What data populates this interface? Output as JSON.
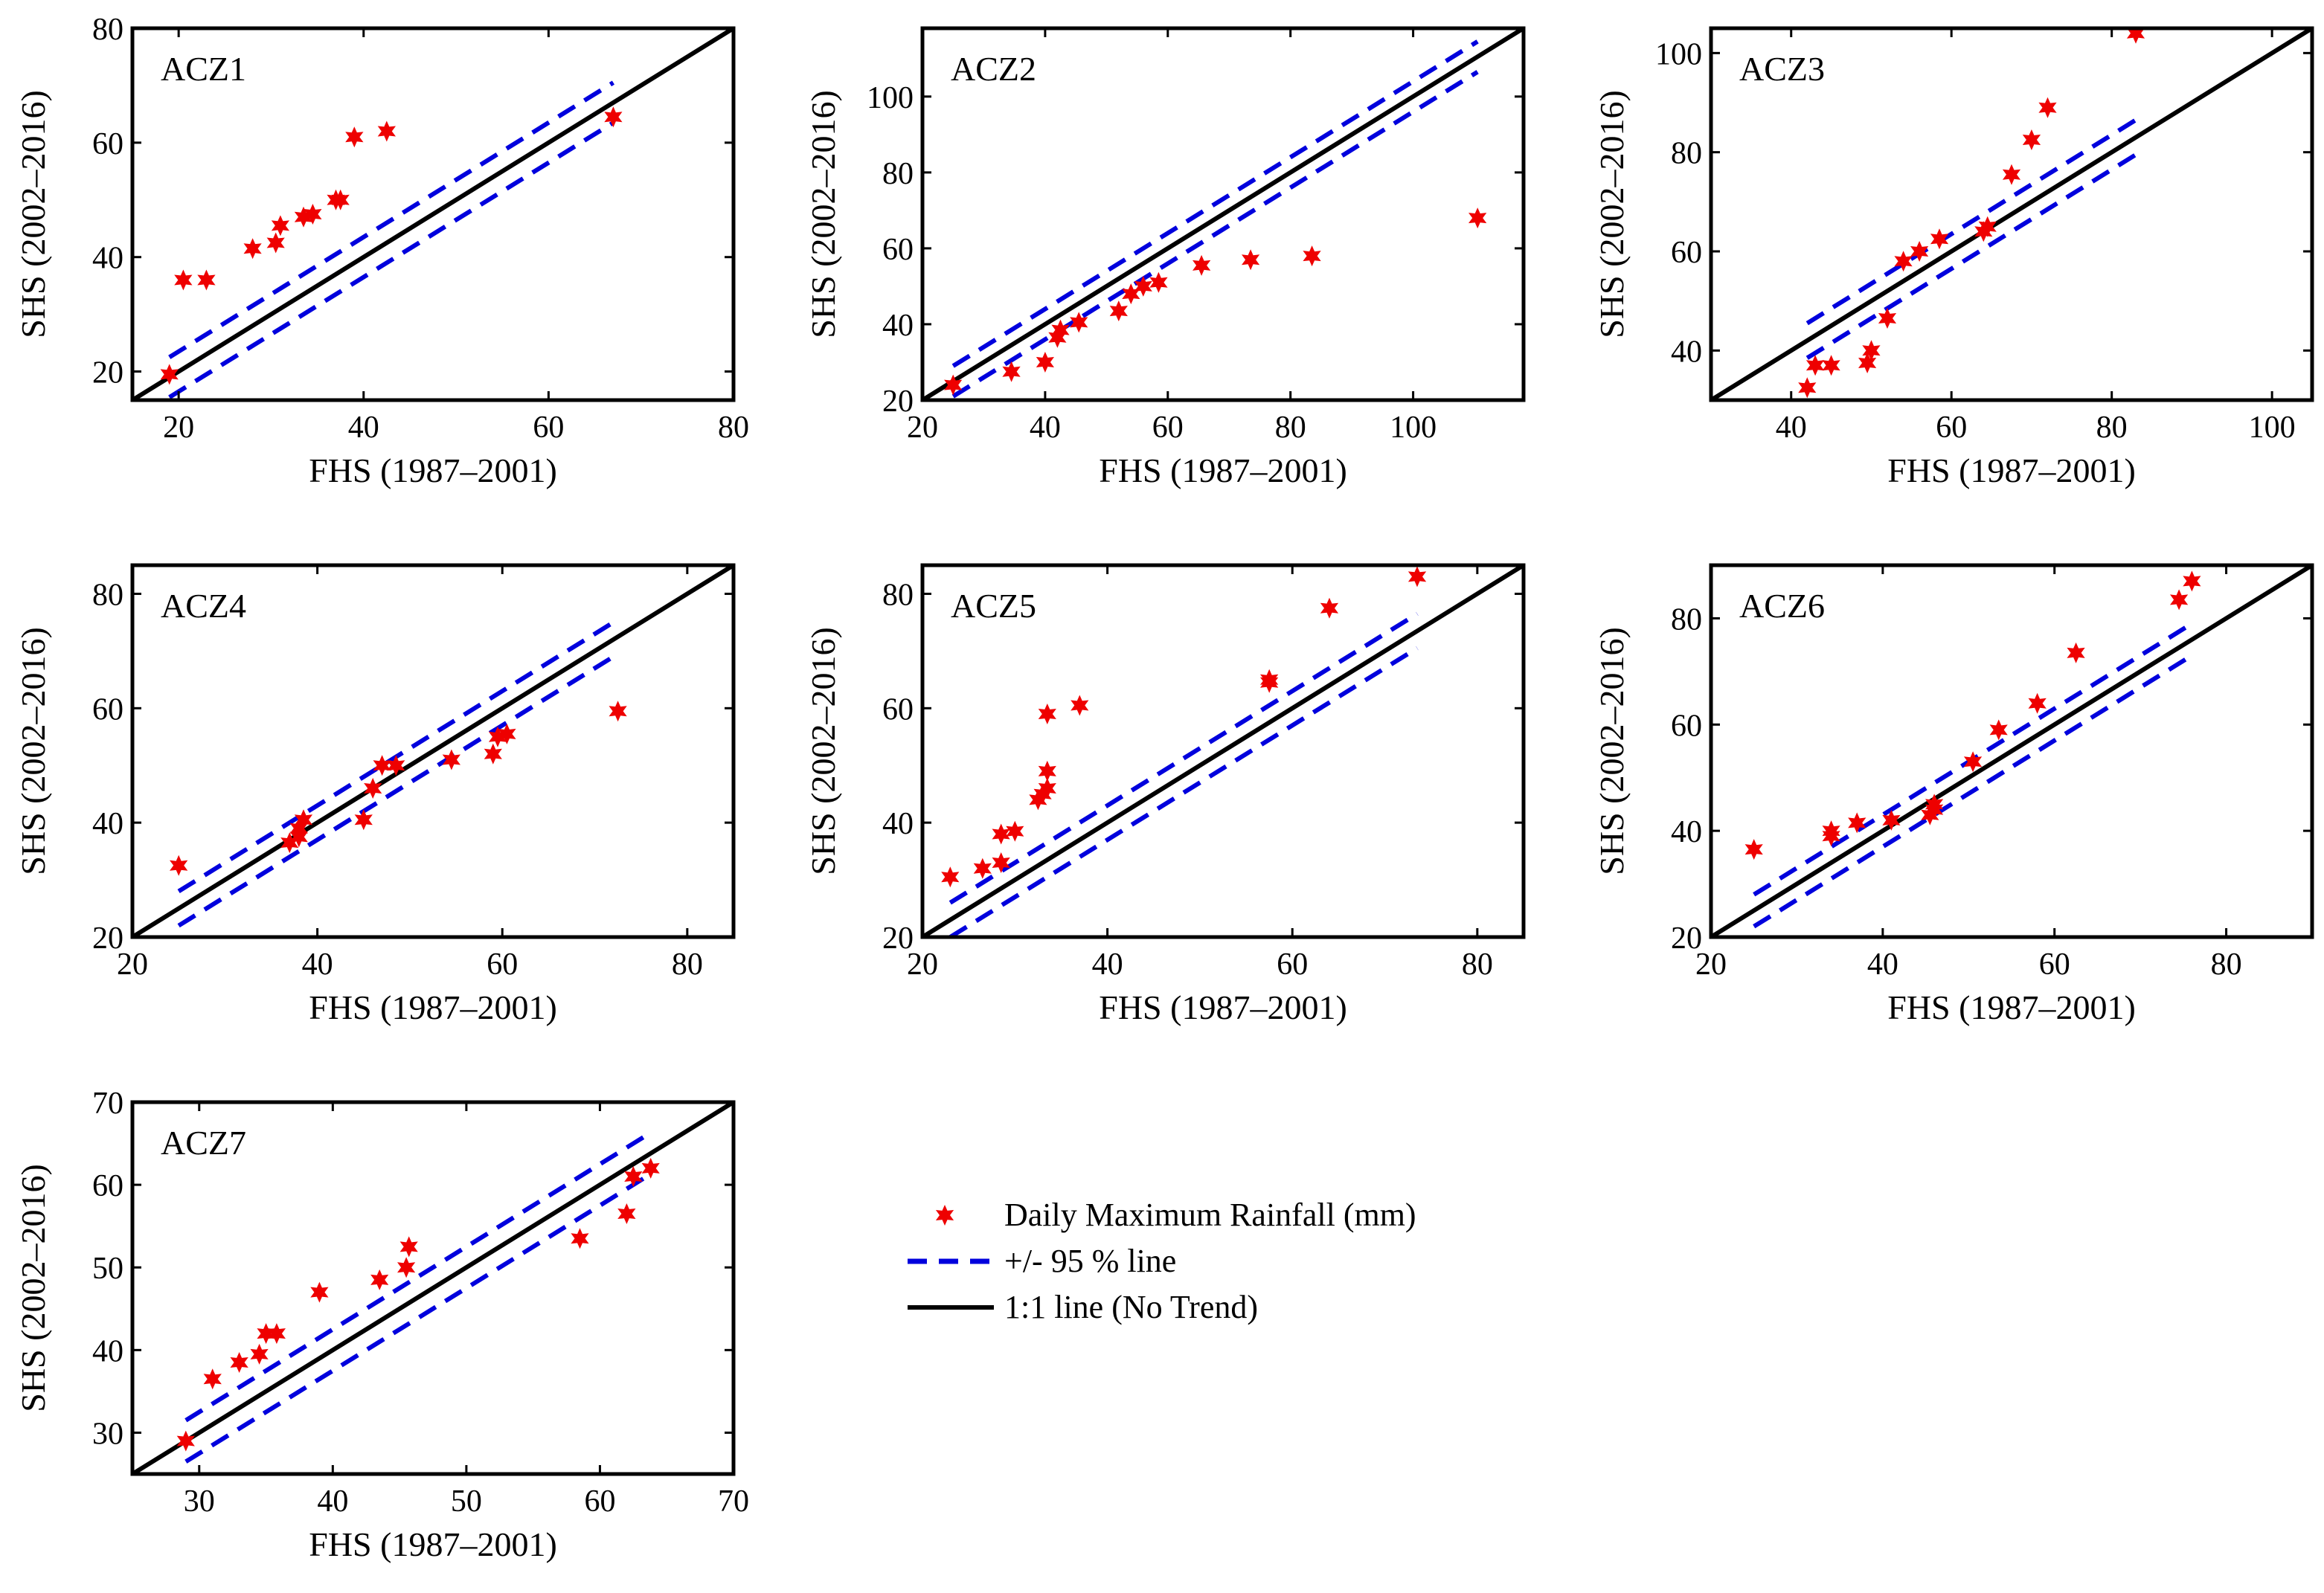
{
  "chart_data": [
    {
      "type": "scatter",
      "panel": "ACZ1",
      "xlabel": "FHS (1987–2001)",
      "ylabel": "SHS (2002–2016)",
      "xlim": [
        15,
        80
      ],
      "ylim": [
        15,
        80
      ],
      "xticks": [
        20,
        40,
        60,
        80
      ],
      "yticks": [
        20,
        40,
        60,
        80
      ],
      "band": 3.5,
      "points": [
        [
          19,
          19.5
        ],
        [
          20.5,
          36
        ],
        [
          23,
          36
        ],
        [
          28,
          41.5
        ],
        [
          30.5,
          42.5
        ],
        [
          31,
          45.5
        ],
        [
          33.5,
          47
        ],
        [
          34.5,
          47.5
        ],
        [
          37,
          50
        ],
        [
          37.5,
          50
        ],
        [
          39,
          61
        ],
        [
          42.5,
          62
        ],
        [
          67,
          64.5
        ]
      ]
    },
    {
      "type": "scatter",
      "panel": "ACZ2",
      "xlabel": "FHS (1987–2001)",
      "ylabel": "SHS (2002–2016)",
      "xlim": [
        20,
        118
      ],
      "ylim": [
        20,
        118
      ],
      "xticks": [
        20,
        40,
        60,
        80,
        100
      ],
      "yticks": [
        20,
        40,
        60,
        80,
        100
      ],
      "band": 4,
      "points": [
        [
          25,
          24
        ],
        [
          34.5,
          27.5
        ],
        [
          40,
          30
        ],
        [
          42,
          36.5
        ],
        [
          42.5,
          38.5
        ],
        [
          45.5,
          40.5
        ],
        [
          52,
          43.5
        ],
        [
          54,
          48
        ],
        [
          56,
          50
        ],
        [
          58.5,
          51
        ],
        [
          65.5,
          55.5
        ],
        [
          73.5,
          57
        ],
        [
          83.5,
          58
        ],
        [
          110.5,
          68
        ]
      ]
    },
    {
      "type": "scatter",
      "panel": "ACZ3",
      "xlabel": "FHS (1987–2001)",
      "ylabel": "SHS (2002–2016)",
      "xlim": [
        30,
        105
      ],
      "ylim": [
        30,
        105
      ],
      "xticks": [
        40,
        60,
        80,
        100
      ],
      "yticks": [
        40,
        60,
        80,
        100
      ],
      "band": 3.5,
      "points": [
        [
          42,
          32.5
        ],
        [
          43,
          37
        ],
        [
          45,
          37
        ],
        [
          49.5,
          37.5
        ],
        [
          50,
          40
        ],
        [
          52,
          46.5
        ],
        [
          54,
          58
        ],
        [
          56,
          60
        ],
        [
          58.5,
          62.5
        ],
        [
          64,
          64
        ],
        [
          64.5,
          65
        ],
        [
          67.5,
          75.5
        ],
        [
          70,
          82.5
        ],
        [
          72,
          89
        ],
        [
          83,
          104
        ]
      ]
    },
    {
      "type": "scatter",
      "panel": "ACZ4",
      "xlabel": "FHS (1987–2001)",
      "ylabel": "SHS (2002–2016)",
      "xlim": [
        20,
        85
      ],
      "ylim": [
        20,
        85
      ],
      "xticks": [
        20,
        40,
        60,
        80
      ],
      "yticks": [
        20,
        40,
        60,
        80
      ],
      "band": 3,
      "points": [
        [
          25,
          32.5
        ],
        [
          37,
          36.5
        ],
        [
          38,
          37.5
        ],
        [
          38,
          39
        ],
        [
          38.5,
          40.5
        ],
        [
          45,
          40.5
        ],
        [
          46,
          46
        ],
        [
          47,
          50
        ],
        [
          48.5,
          50
        ],
        [
          54.5,
          51
        ],
        [
          59,
          52
        ],
        [
          59.5,
          55
        ],
        [
          60.5,
          55.5
        ],
        [
          72.5,
          59.5
        ]
      ]
    },
    {
      "type": "scatter",
      "panel": "ACZ5",
      "xlabel": "FHS (1987–2001)",
      "ylabel": "SHS (2002–2016)",
      "xlim": [
        20,
        85
      ],
      "ylim": [
        20,
        85
      ],
      "xticks": [
        20,
        40,
        60,
        80
      ],
      "yticks": [
        20,
        40,
        60,
        80
      ],
      "band": 3,
      "points": [
        [
          23,
          30.5
        ],
        [
          26.5,
          32
        ],
        [
          28.5,
          33
        ],
        [
          28.5,
          38
        ],
        [
          30,
          38.5
        ],
        [
          32.5,
          44
        ],
        [
          33,
          45
        ],
        [
          33.5,
          46
        ],
        [
          33.5,
          49
        ],
        [
          33.5,
          59
        ],
        [
          37,
          60.5
        ],
        [
          57.5,
          64.5
        ],
        [
          57.5,
          65
        ],
        [
          64,
          77.5
        ],
        [
          73.5,
          83
        ]
      ]
    },
    {
      "type": "scatter",
      "panel": "ACZ6",
      "xlabel": "FHS (1987–2001)",
      "ylabel": "SHS (2002–2016)",
      "xlim": [
        20,
        90
      ],
      "ylim": [
        20,
        90
      ],
      "xticks": [
        20,
        40,
        60,
        80
      ],
      "yticks": [
        20,
        40,
        60,
        80
      ],
      "band": 3,
      "points": [
        [
          25,
          36.5
        ],
        [
          34,
          39
        ],
        [
          34,
          40
        ],
        [
          37,
          41.5
        ],
        [
          41,
          42
        ],
        [
          45.5,
          43
        ],
        [
          46,
          44
        ],
        [
          46,
          45
        ],
        [
          50.5,
          53
        ],
        [
          53.5,
          59
        ],
        [
          58,
          64
        ],
        [
          62.5,
          73.5
        ],
        [
          74.5,
          83.5
        ],
        [
          76,
          87
        ]
      ]
    },
    {
      "type": "scatter",
      "panel": "ACZ7",
      "xlabel": "FHS (1987–2001)",
      "ylabel": "SHS (2002–2016)",
      "xlim": [
        25,
        70
      ],
      "ylim": [
        25,
        70
      ],
      "xticks": [
        30,
        40,
        50,
        60,
        70
      ],
      "yticks": [
        30,
        40,
        50,
        60,
        70
      ],
      "band": 2.5,
      "points": [
        [
          29,
          29
        ],
        [
          31,
          36.5
        ],
        [
          33,
          38.5
        ],
        [
          34.5,
          39.5
        ],
        [
          35,
          42
        ],
        [
          35.8,
          42
        ],
        [
          39,
          47
        ],
        [
          43.5,
          48.5
        ],
        [
          45.5,
          50
        ],
        [
          45.7,
          52.5
        ],
        [
          58.5,
          53.5
        ],
        [
          62,
          56.5
        ],
        [
          62.5,
          61
        ],
        [
          63.8,
          62
        ]
      ]
    }
  ],
  "legend": {
    "points_label": "Daily Maximum Rainfall (mm)",
    "band_label": "+/- 95 % line",
    "identity_label": "1:1 line (No Trend)"
  },
  "colors": {
    "points": "#ee0000",
    "band": "#0000dd",
    "identity": "#000000",
    "axes": "#000000"
  }
}
